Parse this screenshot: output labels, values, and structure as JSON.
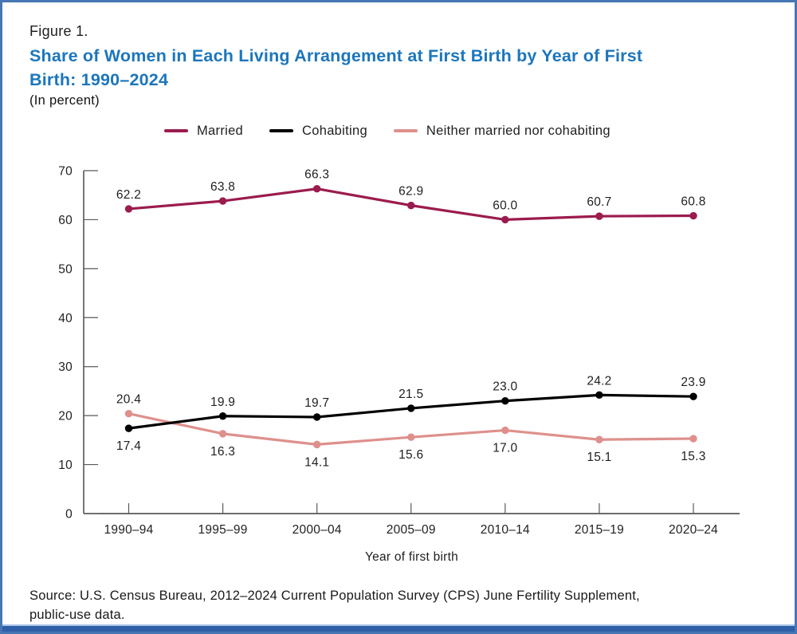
{
  "figure_label": "Figure 1.",
  "title_lines": [
    "Share of Women in Each Living Arrangement at First Birth by Year of First",
    "Birth: 1990–2024"
  ],
  "subtitle": "(In percent)",
  "source_lines": [
    "Source: U.S. Census Bureau, 2012–2024 Current Population Survey (CPS) June Fertility Supplement,",
    "public-use data."
  ],
  "colors": {
    "title_blue": "#1C76BC",
    "border_blue": "#4676B4",
    "bottom_bar_blue": "#2E5FA7",
    "married": "#9B1B4E",
    "cohabiting": "#000000",
    "neither": "#DE908C",
    "axis_line": "#3C3C3C",
    "tick": "#595959",
    "label_text": "#1F1F1F"
  },
  "chart_data": {
    "type": "line",
    "title": "Share of Women in Each Living Arrangement at First Birth by Year of First Birth: 1990–2024",
    "subtitle": "(In percent)",
    "categories": [
      "1990–94",
      "1995–99",
      "2000–04",
      "2005–09",
      "2010–14",
      "2015–19",
      "2020–24"
    ],
    "series": [
      {
        "name": "Married",
        "color_key": "married",
        "values": [
          62.2,
          63.8,
          66.3,
          62.9,
          60.0,
          60.7,
          60.8
        ],
        "label_positions": [
          "above",
          "above",
          "above",
          "above",
          "above",
          "above",
          "above"
        ]
      },
      {
        "name": "Cohabiting",
        "color_key": "cohabiting",
        "values": [
          17.4,
          19.9,
          19.7,
          21.5,
          23.0,
          24.2,
          23.9
        ],
        "label_positions": [
          "below",
          "above",
          "above",
          "above",
          "above",
          "above",
          "above"
        ]
      },
      {
        "name": "Neither married nor cohabiting",
        "color_key": "neither",
        "values": [
          20.4,
          16.3,
          14.1,
          15.6,
          17.0,
          15.1,
          15.3
        ],
        "label_positions": [
          "above",
          "below",
          "below",
          "below",
          "below",
          "below",
          "below"
        ]
      }
    ],
    "xlabel": "Year of first birth",
    "ylim": [
      0,
      70
    ],
    "ytick_step": 10,
    "grid": false,
    "legend_position": "top",
    "data_labels": true
  }
}
